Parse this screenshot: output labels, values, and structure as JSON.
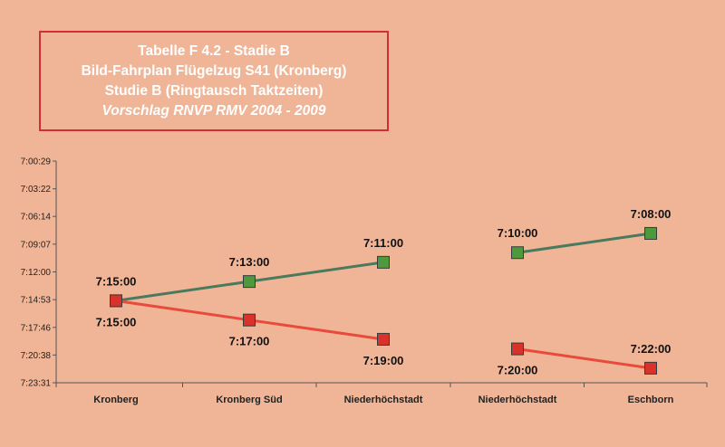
{
  "title_lines": [
    "Tabelle F 4.2 - Stadie B",
    "Bild-Fahrplan Flügelzug S41 (Kronberg)",
    "Studie B (Ringtausch Taktzeiten)",
    "Vorschlag RNVP RMV 2004 - 2009"
  ],
  "colors": {
    "background": "#efb596",
    "green_series": "#4a7a5e",
    "green_marker": "#4d9a3c",
    "red_series": "#e84a3c",
    "red_marker": "#d8322a",
    "axis": "#555555"
  },
  "chart_data": {
    "type": "line",
    "categories": [
      "Kronberg",
      "Kronberg Süd",
      "Niederhöchstadt",
      "Niederhöchstadt",
      "Eschborn"
    ],
    "y_ticks": [
      "7:00:29",
      "7:03:22",
      "7:06:14",
      "7:09:07",
      "7:12:00",
      "7:14:53",
      "7:17:46",
      "7:20:38",
      "7:23:31"
    ],
    "y_tick_seconds": [
      29,
      202,
      374,
      547,
      720,
      893,
      1066,
      1238,
      1411
    ],
    "y_reversed": true,
    "ylim": [
      "7:00:29",
      "7:23:31"
    ],
    "grid": false,
    "series": [
      {
        "color": "green",
        "segments": [
          [
            0,
            1,
            2
          ],
          [
            3,
            4
          ]
        ],
        "points": [
          {
            "cat": 0,
            "time": "7:15:00",
            "label": "7:15:00",
            "label_pos": "above"
          },
          {
            "cat": 1,
            "time": "7:13:00",
            "label": "7:13:00",
            "label_pos": "above"
          },
          {
            "cat": 2,
            "time": "7:11:00",
            "label": "7:11:00",
            "label_pos": "above"
          },
          {
            "cat": 3,
            "time": "7:10:00",
            "label": "7:10:00",
            "label_pos": "above"
          },
          {
            "cat": 4,
            "time": "7:08:00",
            "label": "7:08:00",
            "label_pos": "above"
          }
        ]
      },
      {
        "color": "red",
        "segments": [
          [
            0,
            1,
            2
          ],
          [
            3,
            4
          ]
        ],
        "points": [
          {
            "cat": 0,
            "time": "7:15:00",
            "label": "7:15:00",
            "label_pos": "below"
          },
          {
            "cat": 1,
            "time": "7:17:00",
            "label": "7:17:00",
            "label_pos": "below"
          },
          {
            "cat": 2,
            "time": "7:19:00",
            "label": "7:19:00",
            "label_pos": "below"
          },
          {
            "cat": 3,
            "time": "7:20:00",
            "label": "7:20:00",
            "label_pos": "below"
          },
          {
            "cat": 4,
            "time": "7:22:00",
            "label": "7:22:00",
            "label_pos": "above"
          }
        ]
      }
    ]
  }
}
